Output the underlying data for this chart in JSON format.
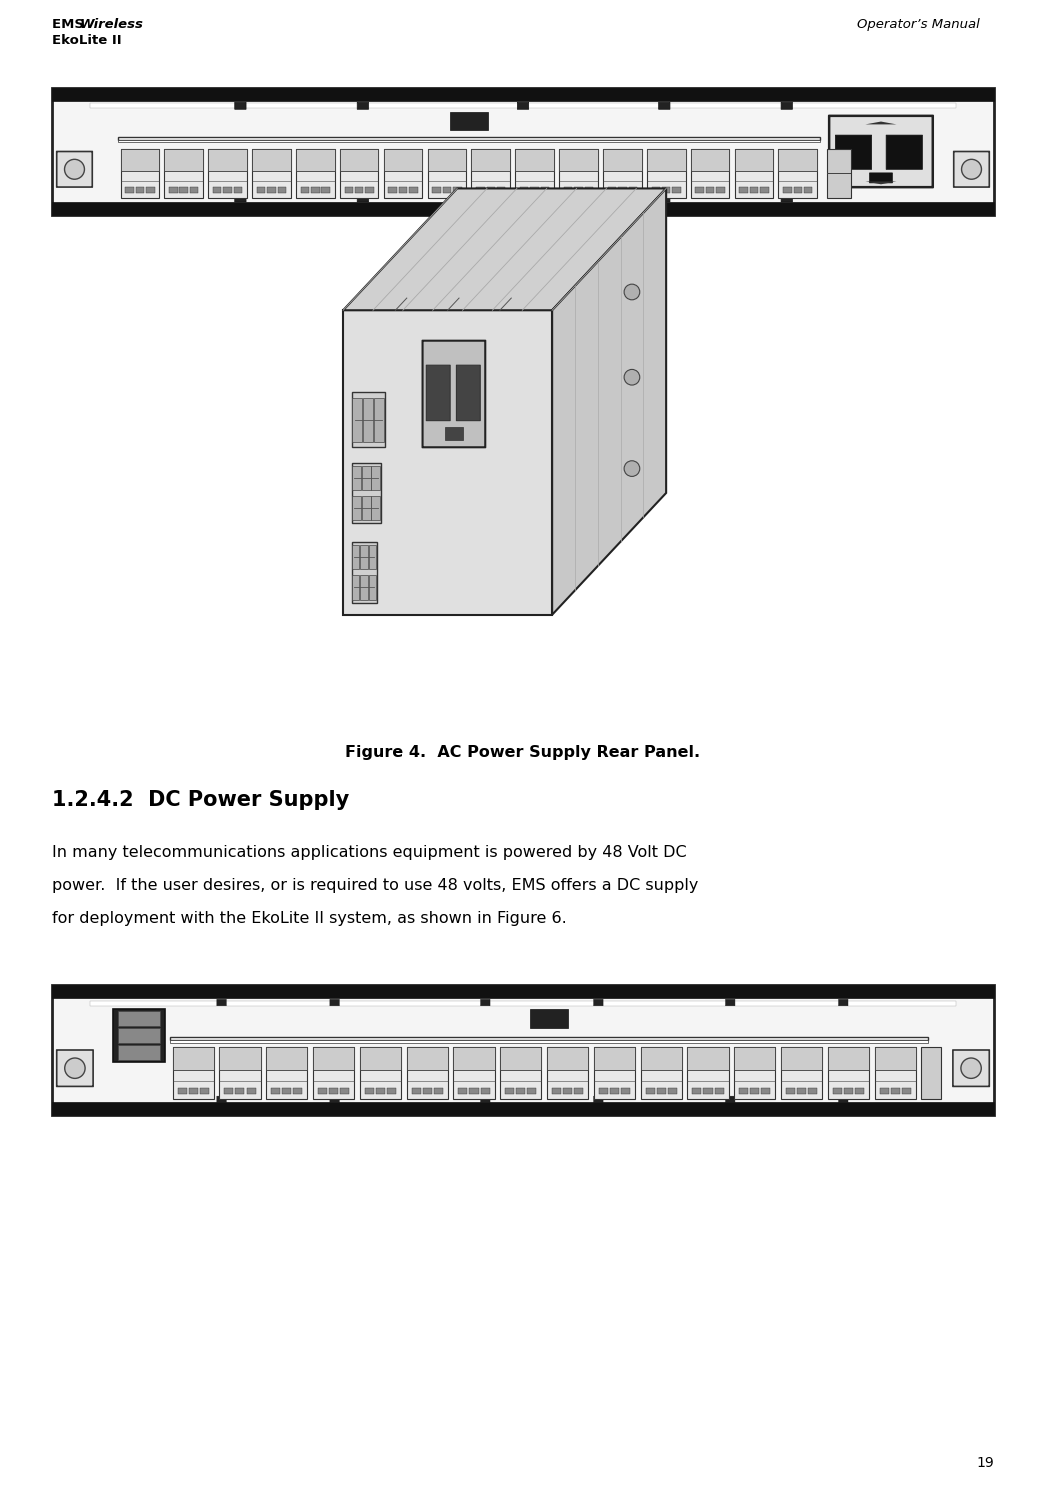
{
  "header_left_bold": "EMS ",
  "header_left_italic": "Wireless",
  "header_left_line2": "EkoLite II",
  "header_right": "Operator’s Manual",
  "figure_caption": "Figure 4.  AC Power Supply Rear Panel.",
  "section_heading": "1.2.4.2  DC Power Supply",
  "body_line1": "In many telecommunications applications equipment is powered by 48 Volt DC",
  "body_line2": "power.  If the user desires, or is required to use 48 volts, EMS offers a DC supply",
  "body_line3": "for deployment with the EkoLite II system, as shown in Figure 6.",
  "page_number": "19",
  "bg_color": "#ffffff",
  "text_color": "#000000"
}
